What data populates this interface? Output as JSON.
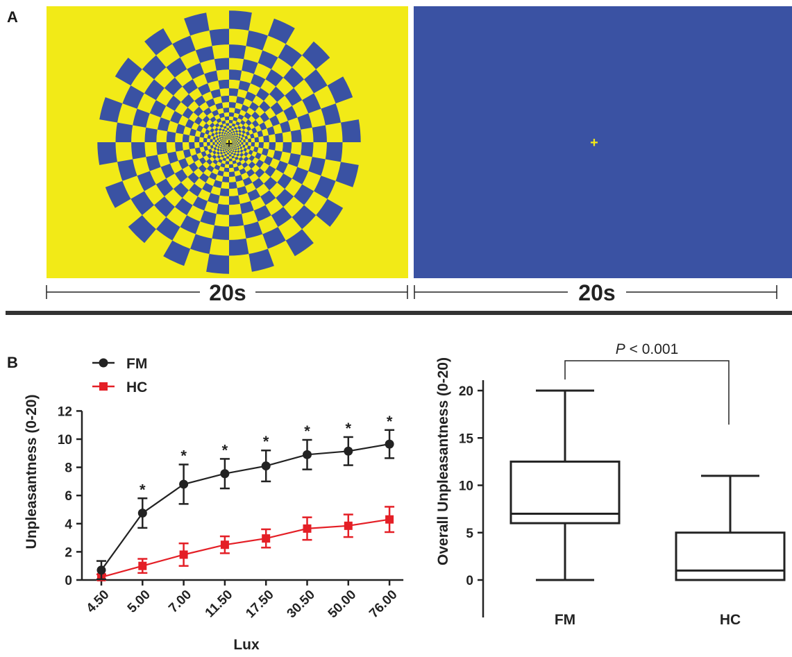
{
  "panel_a": {
    "letter": "A",
    "stimulus_left": {
      "description_colors": {
        "a": "#f2ea17",
        "b": "#3a52a3"
      }
    },
    "stimulus_right": {
      "background": "#3a52a3",
      "fixation": "+",
      "fixation_color": "#f2ea17"
    },
    "duration_left": "20s",
    "duration_right": "20s"
  },
  "panel_b": {
    "letter": "B"
  },
  "chart_data": [
    {
      "type": "line",
      "x_label": "Lux",
      "y_label": "Unpleasantness (0-20)",
      "categories": [
        "4.50",
        "5.00",
        "7.00",
        "11.50",
        "17.50",
        "30.50",
        "50.00",
        "76.00"
      ],
      "ylim": [
        0,
        12
      ],
      "yticks": [
        "0",
        "2",
        "4",
        "6",
        "8",
        "10",
        "12"
      ],
      "legend_position": "top-left",
      "series": [
        {
          "name": "FM",
          "color": "#222222",
          "marker": "circle",
          "values": [
            0.7,
            4.75,
            6.8,
            7.55,
            8.1,
            8.9,
            9.15,
            9.65
          ],
          "err": [
            0.65,
            1.05,
            1.4,
            1.05,
            1.1,
            1.05,
            1.0,
            1.0
          ],
          "significance": [
            "",
            "*",
            "*",
            "*",
            "*",
            "*",
            "*",
            "*"
          ]
        },
        {
          "name": "HC",
          "color": "#e41f26",
          "marker": "square",
          "values": [
            0.2,
            1.0,
            1.8,
            2.5,
            2.95,
            3.65,
            3.85,
            4.3
          ],
          "err": [
            0.2,
            0.5,
            0.8,
            0.6,
            0.65,
            0.8,
            0.8,
            0.9
          ]
        }
      ]
    },
    {
      "type": "box",
      "y_label": "Overall Unpleasantness (0-20)",
      "categories": [
        "FM",
        "HC"
      ],
      "ylim": [
        -2,
        21
      ],
      "yticks": [
        "0",
        "5",
        "10",
        "15",
        "20"
      ],
      "boxes": [
        {
          "name": "FM",
          "min": 0,
          "q1": 6,
          "median": 7,
          "q3": 12.5,
          "max": 20
        },
        {
          "name": "HC",
          "min": 0,
          "q1": 0,
          "median": 1,
          "q3": 5,
          "max": 11
        }
      ],
      "annotation": {
        "p_label": "P",
        "p_value": "< 0.001"
      }
    }
  ]
}
